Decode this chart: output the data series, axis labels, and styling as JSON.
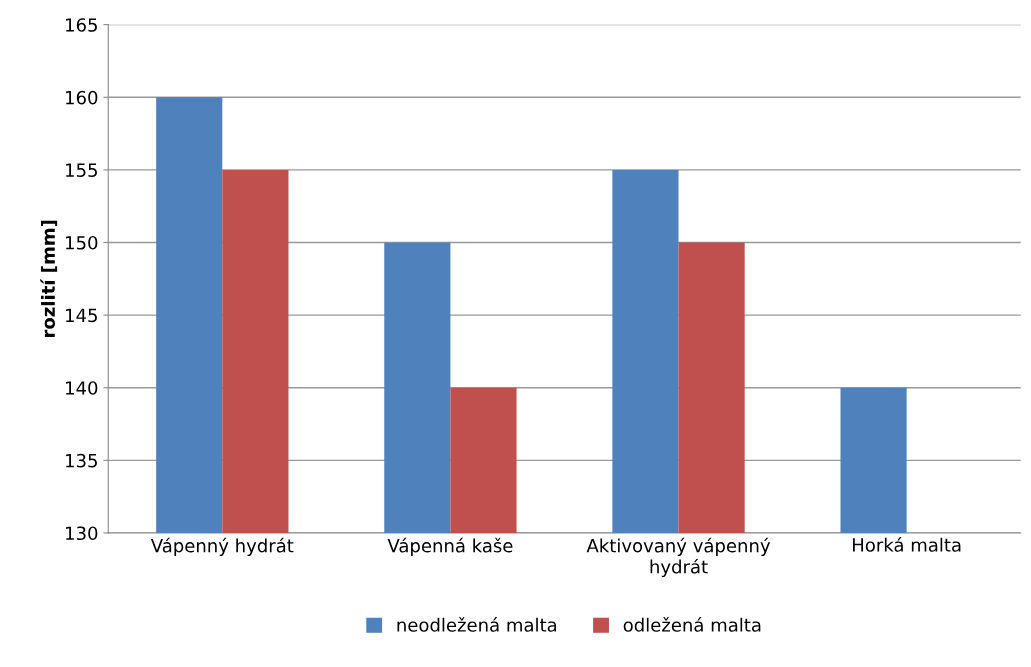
{
  "chart_data": {
    "type": "bar",
    "ylabel": "rozlití [mm]",
    "categories": [
      "Vápenný hydrát",
      "Vápenná kaše",
      "Aktivovaný vápenný hydrát",
      "Horká malta"
    ],
    "series": [
      {
        "name": "neodležená malta",
        "color": "#4f81bd",
        "values": [
          160,
          150,
          155,
          140
        ]
      },
      {
        "name": "odležená malta",
        "color": "#c0504d",
        "values": [
          155,
          140,
          150,
          null
        ]
      }
    ],
    "ylim": [
      130,
      165
    ],
    "yticks": [
      130,
      135,
      140,
      145,
      150,
      155,
      160,
      165
    ],
    "grid": "y",
    "legend": "bottom"
  }
}
